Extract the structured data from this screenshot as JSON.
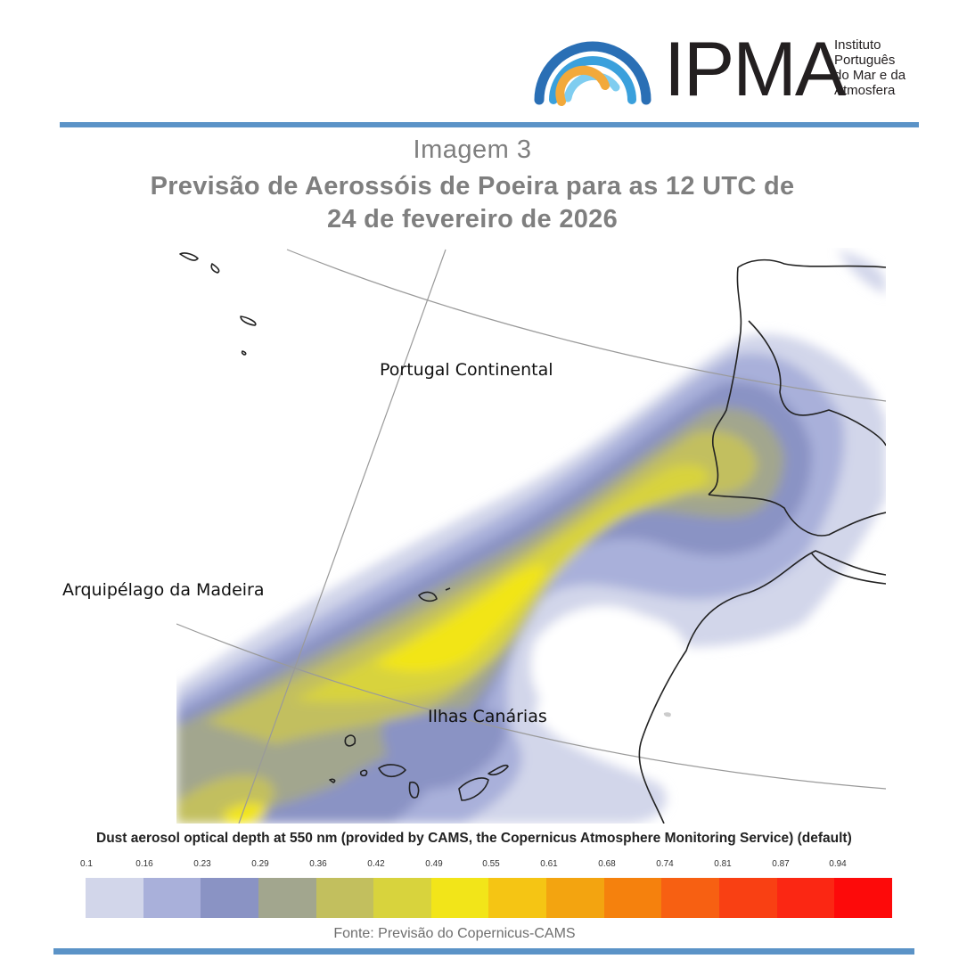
{
  "logo": {
    "text": "IPMA",
    "subtitle": [
      "Instituto",
      "Português",
      "do Mar e da",
      "Atmosfera"
    ],
    "arc_colors": [
      "#2a6fb5",
      "#3aa0dc",
      "#7fcdf0",
      "#f2a93b"
    ]
  },
  "header": {
    "line1": "Imagem  3",
    "line2": "Previsão de Aerossóis de Poeira para as 12 UTC de",
    "line3": "24 de fevereiro de 2026"
  },
  "map": {
    "labels": {
      "portugal": "Portugal Continental",
      "madeira": "Arquipélago da Madeira",
      "canarias": "Ilhas Canárias"
    }
  },
  "colorbar": {
    "title": "Dust aerosol optical depth at 550 nm (provided by CAMS, the Copernicus Atmosphere Monitoring Service) (default)",
    "ticks": [
      "0.1",
      "0.16",
      "0.23",
      "0.29",
      "0.36",
      "0.42",
      "0.49",
      "0.55",
      "0.61",
      "0.68",
      "0.74",
      "0.81",
      "0.87",
      "0.94"
    ],
    "colors": [
      "#d2d6ea",
      "#a9b0da",
      "#8a93c4",
      "#a2a68e",
      "#c2bf5e",
      "#d8d33d",
      "#f2e519",
      "#f5c514",
      "#f3a410",
      "#f5810d",
      "#f76012",
      "#f94013",
      "#fb2713",
      "#fd0a0a"
    ]
  },
  "source": "Fonte: Previsão do Copernicus-CAMS"
}
